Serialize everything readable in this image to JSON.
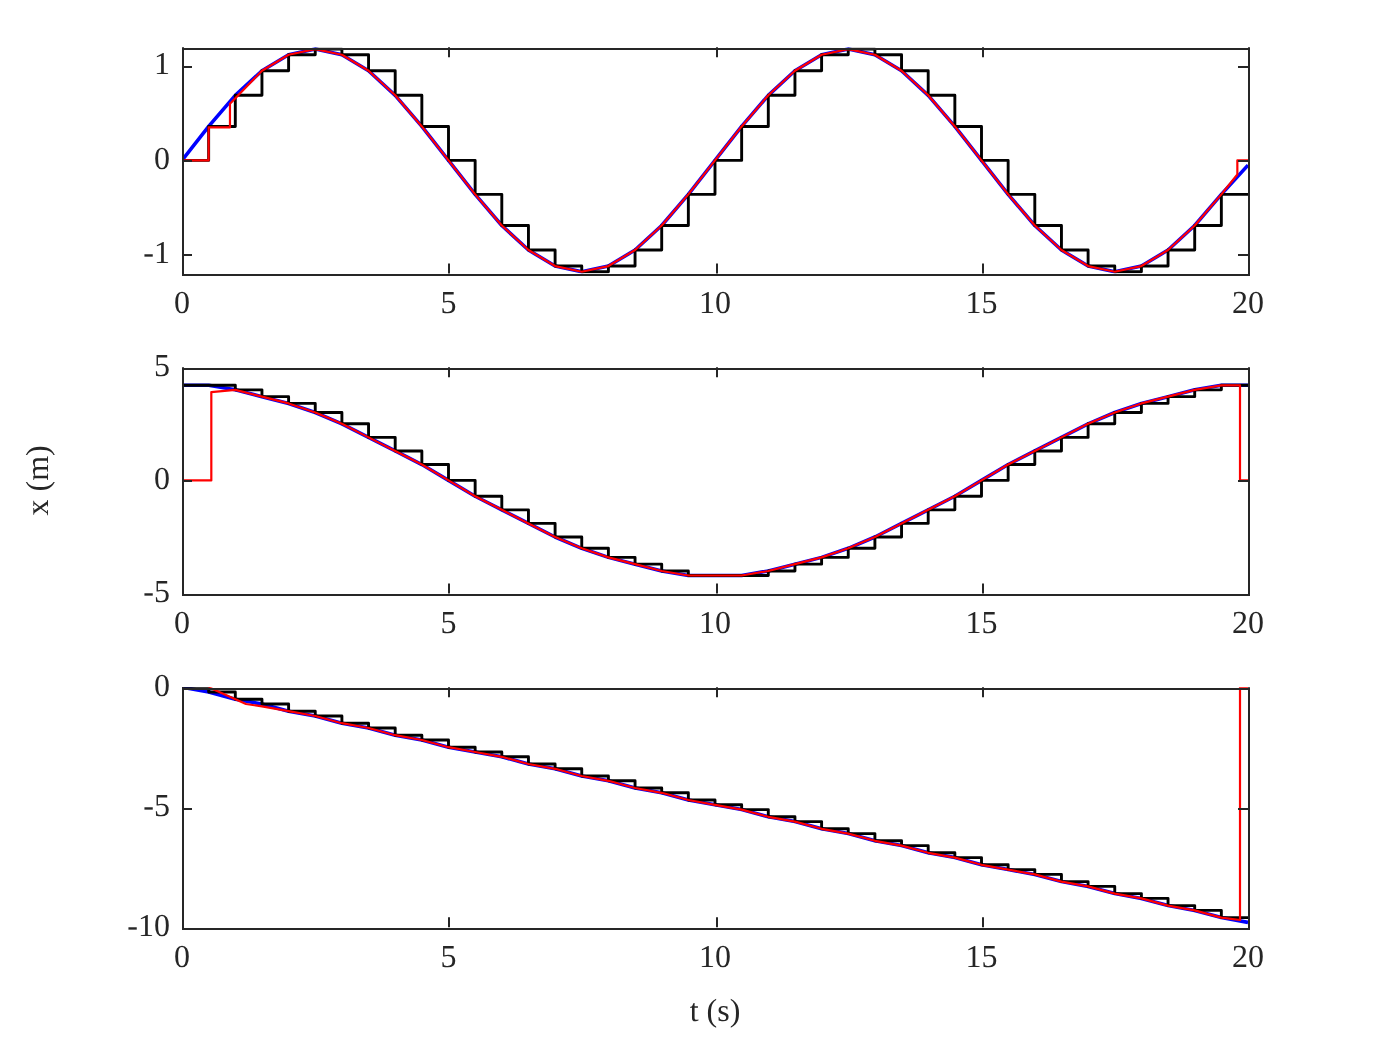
{
  "chart_data": [
    {
      "type": "line",
      "xlim": [
        0,
        20
      ],
      "xticks": [
        0,
        5,
        10,
        15,
        20
      ],
      "ylim": [
        -1.2,
        1.2
      ],
      "yticks": [
        -1,
        0,
        1
      ],
      "legend": false,
      "series": [
        {
          "color": "#0000ff",
          "x": [
            0,
            0.5,
            1,
            1.5,
            2,
            2.5,
            3,
            3.5,
            4,
            4.5,
            5,
            5.5,
            6,
            6.5,
            7,
            7.5,
            8,
            8.5,
            9,
            9.5,
            10,
            10.5,
            11,
            11.5,
            12,
            12.5,
            13,
            13.5,
            14,
            14.5,
            15,
            15.5,
            16,
            16.5,
            17,
            17.5,
            18,
            18.5,
            19,
            19.5,
            20
          ],
          "values": [
            0,
            0.36,
            0.69,
            0.95,
            1.12,
            1.18,
            1.12,
            0.95,
            0.69,
            0.36,
            0,
            -0.36,
            -0.69,
            -0.95,
            -1.12,
            -1.18,
            -1.12,
            -0.95,
            -0.69,
            -0.36,
            0,
            0.36,
            0.69,
            0.95,
            1.12,
            1.18,
            1.12,
            0.95,
            0.69,
            0.36,
            0,
            -0.36,
            -0.69,
            -0.95,
            -1.12,
            -1.18,
            -1.12,
            -0.95,
            -0.69,
            -0.36,
            -0.05
          ]
        },
        {
          "type": "step",
          "color": "#000000",
          "x": [
            0,
            0.5,
            1,
            1.5,
            2,
            2.5,
            3,
            3.5,
            4,
            4.5,
            5,
            5.5,
            6,
            6.5,
            7,
            7.5,
            8,
            8.5,
            9,
            9.5,
            10,
            10.5,
            11,
            11.5,
            12,
            12.5,
            13,
            13.5,
            14,
            14.5,
            15,
            15.5,
            16,
            16.5,
            17,
            17.5,
            18,
            18.5,
            19,
            19.5,
            20
          ],
          "values": [
            0,
            0,
            0.36,
            0.69,
            0.95,
            1.12,
            1.18,
            1.12,
            0.95,
            0.69,
            0.36,
            0,
            -0.36,
            -0.69,
            -0.95,
            -1.12,
            -1.18,
            -1.12,
            -0.95,
            -0.69,
            -0.36,
            0,
            0.36,
            0.69,
            0.95,
            1.12,
            1.18,
            1.12,
            0.95,
            0.69,
            0.36,
            0,
            -0.36,
            -0.69,
            -0.95,
            -1.12,
            -1.18,
            -1.12,
            -0.95,
            -0.69,
            -0.36
          ]
        },
        {
          "color": "#ff0000",
          "x": [
            0,
            0.5,
            0.5,
            0.9,
            0.9,
            1.5,
            2,
            2.5,
            3,
            3.5,
            4,
            4.5,
            5,
            5.5,
            6,
            6.5,
            7,
            7.5,
            8,
            8.5,
            9,
            9.5,
            10,
            10.5,
            11,
            11.5,
            12,
            12.5,
            13,
            13.5,
            14,
            14.5,
            15,
            15.5,
            16,
            16.5,
            17,
            17.5,
            18,
            18.5,
            19,
            19.5,
            19.8,
            19.8,
            20
          ],
          "values": [
            0,
            0,
            0.35,
            0.35,
            0.6,
            0.95,
            1.12,
            1.18,
            1.12,
            0.95,
            0.69,
            0.36,
            0,
            -0.36,
            -0.69,
            -0.95,
            -1.12,
            -1.18,
            -1.12,
            -0.95,
            -0.69,
            -0.36,
            0,
            0.36,
            0.69,
            0.95,
            1.12,
            1.18,
            1.12,
            0.95,
            0.69,
            0.36,
            0,
            -0.36,
            -0.69,
            -0.95,
            -1.12,
            -1.18,
            -1.12,
            -0.95,
            -0.69,
            -0.36,
            -0.15,
            0,
            0
          ]
        }
      ]
    },
    {
      "type": "line",
      "ylabel": "x (m)",
      "xlim": [
        0,
        20
      ],
      "xticks": [
        0,
        5,
        10,
        15,
        20
      ],
      "ylim": [
        -5,
        5
      ],
      "yticks": [
        -5,
        0,
        5
      ],
      "legend": false,
      "series": [
        {
          "color": "#0000ff",
          "x": [
            0,
            0.5,
            1,
            1.5,
            2,
            2.5,
            3,
            3.5,
            4,
            4.5,
            5,
            5.5,
            6,
            6.5,
            7,
            7.5,
            8,
            8.5,
            9,
            9.5,
            10,
            10.5,
            11,
            11.5,
            12,
            12.5,
            13,
            13.5,
            14,
            14.5,
            15,
            15.5,
            16,
            16.5,
            17,
            17.5,
            18,
            18.5,
            19,
            19.5,
            20
          ],
          "values": [
            4.2,
            4.2,
            4.0,
            3.7,
            3.4,
            3.0,
            2.5,
            1.9,
            1.3,
            0.7,
            0,
            -0.7,
            -1.3,
            -1.9,
            -2.5,
            -3.0,
            -3.4,
            -3.7,
            -4.0,
            -4.2,
            -4.2,
            -4.2,
            -4.0,
            -3.7,
            -3.4,
            -3.0,
            -2.5,
            -1.9,
            -1.3,
            -0.7,
            0,
            0.7,
            1.3,
            1.9,
            2.5,
            3.0,
            3.4,
            3.7,
            4.0,
            4.2,
            4.2
          ]
        },
        {
          "type": "step",
          "color": "#000000",
          "x": [
            0,
            0.35,
            0.5,
            1,
            1.5,
            2,
            2.5,
            3,
            3.5,
            4,
            4.5,
            5,
            5.5,
            6,
            6.5,
            7,
            7.5,
            8,
            8.5,
            9,
            9.5,
            10,
            10.5,
            11,
            11.5,
            12,
            12.5,
            13,
            13.5,
            14,
            14.5,
            15,
            15.5,
            16,
            16.5,
            17,
            17.5,
            18,
            18.5,
            19,
            19.5,
            20
          ],
          "values": [
            0,
            4.2,
            4.2,
            4.2,
            4.0,
            3.7,
            3.4,
            3.0,
            2.5,
            1.9,
            1.3,
            0.7,
            0,
            -0.7,
            -1.3,
            -1.9,
            -2.5,
            -3.0,
            -3.4,
            -3.7,
            -4.0,
            -4.2,
            -4.2,
            -4.2,
            -4.0,
            -3.7,
            -3.4,
            -3.0,
            -2.5,
            -1.9,
            -1.3,
            -0.7,
            0,
            0.7,
            1.3,
            1.9,
            2.5,
            3.0,
            3.4,
            3.7,
            4.0,
            4.2
          ]
        },
        {
          "color": "#ff0000",
          "x": [
            0,
            0.55,
            0.55,
            1,
            1.5,
            2,
            2.5,
            3,
            3.5,
            4,
            4.5,
            5,
            5.5,
            6,
            6.5,
            7,
            7.5,
            8,
            8.5,
            9,
            9.5,
            10,
            10.5,
            11,
            11.5,
            12,
            12.5,
            13,
            13.5,
            14,
            14.5,
            15,
            15.5,
            16,
            16.5,
            17,
            17.5,
            18,
            18.5,
            19,
            19.5,
            19.85,
            19.85,
            20
          ],
          "values": [
            0,
            0,
            3.9,
            4.0,
            3.7,
            3.4,
            3.0,
            2.5,
            1.9,
            1.3,
            0.7,
            0,
            -0.7,
            -1.3,
            -1.9,
            -2.5,
            -3.0,
            -3.4,
            -3.7,
            -4.0,
            -4.2,
            -4.2,
            -4.2,
            -4.0,
            -3.7,
            -3.4,
            -3.0,
            -2.5,
            -1.9,
            -1.3,
            -0.7,
            0,
            0.7,
            1.3,
            1.9,
            2.5,
            3.0,
            3.4,
            3.7,
            4.0,
            4.2,
            4.2,
            0,
            0
          ]
        }
      ]
    },
    {
      "type": "line",
      "xlabel": "t (s)",
      "xlim": [
        0,
        20
      ],
      "xticks": [
        0,
        5,
        10,
        15,
        20
      ],
      "ylim": [
        -10,
        0
      ],
      "yticks": [
        -10,
        -5,
        0
      ],
      "legend": false,
      "series": [
        {
          "color": "#0000ff",
          "x": [
            0,
            0.5,
            1,
            1.5,
            2,
            2.5,
            3,
            3.5,
            4,
            4.5,
            5,
            5.5,
            6,
            6.5,
            7,
            7.5,
            8,
            8.5,
            9,
            9.5,
            10,
            10.5,
            11,
            11.5,
            12,
            12.5,
            13,
            13.5,
            14,
            14.5,
            15,
            15.5,
            16,
            16.5,
            17,
            17.5,
            18,
            18.5,
            19,
            19.5,
            20
          ],
          "values": [
            0,
            -0.2,
            -0.5,
            -0.7,
            -1.0,
            -1.2,
            -1.5,
            -1.7,
            -2.0,
            -2.2,
            -2.5,
            -2.7,
            -2.9,
            -3.2,
            -3.4,
            -3.7,
            -3.9,
            -4.2,
            -4.4,
            -4.7,
            -4.9,
            -5.1,
            -5.4,
            -5.6,
            -5.9,
            -6.1,
            -6.4,
            -6.6,
            -6.9,
            -7.1,
            -7.4,
            -7.6,
            -7.8,
            -8.1,
            -8.3,
            -8.6,
            -8.8,
            -9.1,
            -9.3,
            -9.6,
            -9.8
          ]
        },
        {
          "type": "step",
          "color": "#000000",
          "x": [
            0,
            0.5,
            1,
            1.5,
            2,
            2.5,
            3,
            3.5,
            4,
            4.5,
            5,
            5.5,
            6,
            6.5,
            7,
            7.5,
            8,
            8.5,
            9,
            9.5,
            10,
            10.5,
            11,
            11.5,
            12,
            12.5,
            13,
            13.5,
            14,
            14.5,
            15,
            15.5,
            16,
            16.5,
            17,
            17.5,
            18,
            18.5,
            19,
            19.5,
            20
          ],
          "values": [
            0,
            0,
            -0.2,
            -0.5,
            -0.7,
            -1.0,
            -1.2,
            -1.5,
            -1.7,
            -2.0,
            -2.2,
            -2.5,
            -2.7,
            -2.9,
            -3.2,
            -3.4,
            -3.7,
            -3.9,
            -4.2,
            -4.4,
            -4.7,
            -4.9,
            -5.1,
            -5.4,
            -5.6,
            -5.9,
            -6.1,
            -6.4,
            -6.6,
            -6.9,
            -7.1,
            -7.4,
            -7.6,
            -7.8,
            -8.1,
            -8.3,
            -8.6,
            -8.8,
            -9.1,
            -9.3,
            -9.6
          ]
        },
        {
          "color": "#ff0000",
          "x": [
            0.5,
            1.2,
            1.5,
            2,
            2.5,
            3,
            3.5,
            4,
            4.5,
            5,
            5.5,
            6,
            6.5,
            7,
            7.5,
            8,
            8.5,
            9,
            9.5,
            10,
            10.5,
            11,
            11.5,
            12,
            12.5,
            13,
            13.5,
            14,
            14.5,
            15,
            15.5,
            16,
            16.5,
            17,
            17.5,
            18,
            18.5,
            19,
            19.5,
            19.85,
            19.85,
            20
          ],
          "values": [
            0,
            -0.7,
            -0.8,
            -1.0,
            -1.2,
            -1.5,
            -1.7,
            -2.0,
            -2.2,
            -2.5,
            -2.7,
            -2.9,
            -3.2,
            -3.4,
            -3.7,
            -3.9,
            -4.2,
            -4.4,
            -4.7,
            -4.9,
            -5.1,
            -5.4,
            -5.6,
            -5.9,
            -6.1,
            -6.4,
            -6.6,
            -6.9,
            -7.1,
            -7.4,
            -7.6,
            -7.8,
            -8.1,
            -8.3,
            -8.6,
            -8.8,
            -9.1,
            -9.3,
            -9.6,
            -9.7,
            0,
            0
          ]
        }
      ]
    }
  ]
}
